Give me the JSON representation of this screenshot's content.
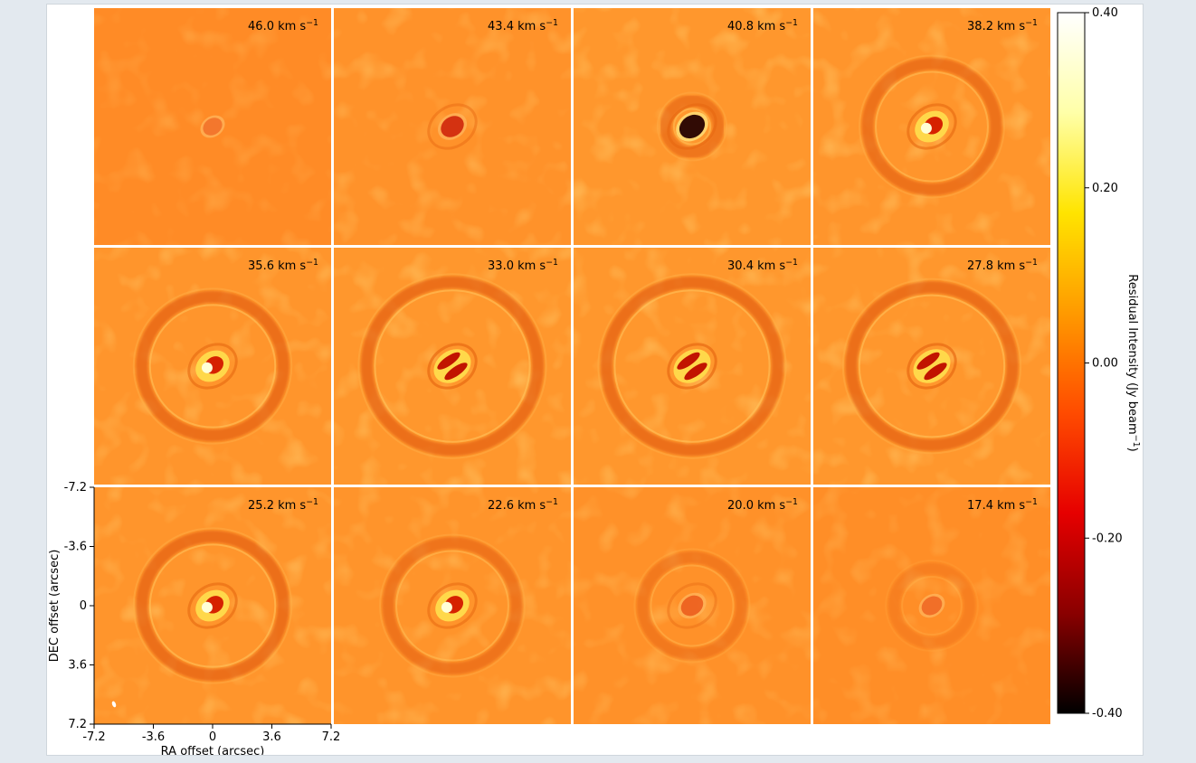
{
  "chart_data": {
    "type": "heatmap",
    "panels": [
      {
        "velocity": "46.0",
        "ring_radius": null,
        "ring_strength": 0,
        "core_strength": 0.25,
        "core_pattern": "blob"
      },
      {
        "velocity": "43.4",
        "ring_radius": null,
        "ring_strength": 0,
        "core_strength": 0.7,
        "core_pattern": "blob"
      },
      {
        "velocity": "40.8",
        "ring_radius": 1.6,
        "ring_strength": 0.5,
        "core_strength": 1.0,
        "core_pattern": "blob"
      },
      {
        "velocity": "38.2",
        "ring_radius": 3.9,
        "ring_strength": 0.55,
        "core_strength": 0.9,
        "core_pattern": "bright"
      },
      {
        "velocity": "35.6",
        "ring_radius": 4.3,
        "ring_strength": 0.6,
        "core_strength": 0.9,
        "core_pattern": "bright"
      },
      {
        "velocity": "33.0",
        "ring_radius": 5.2,
        "ring_strength": 0.6,
        "core_strength": 1.0,
        "core_pattern": "split"
      },
      {
        "velocity": "30.4",
        "ring_radius": 5.2,
        "ring_strength": 0.6,
        "core_strength": 1.0,
        "core_pattern": "split"
      },
      {
        "velocity": "27.8",
        "ring_radius": 4.9,
        "ring_strength": 0.6,
        "core_strength": 1.0,
        "core_pattern": "split"
      },
      {
        "velocity": "25.2",
        "ring_radius": 4.3,
        "ring_strength": 0.6,
        "core_strength": 0.9,
        "core_pattern": "bright"
      },
      {
        "velocity": "22.6",
        "ring_radius": 3.9,
        "ring_strength": 0.5,
        "core_strength": 0.8,
        "core_pattern": "bright"
      },
      {
        "velocity": "20.0",
        "ring_radius": 3.0,
        "ring_strength": 0.4,
        "core_strength": 0.6,
        "core_pattern": "blob"
      },
      {
        "velocity": "17.4",
        "ring_radius": 2.3,
        "ring_strength": 0.25,
        "core_strength": 0.4,
        "core_pattern": "blob"
      }
    ],
    "velocity_unit_text": "km s",
    "velocity_unit_exponent": "−1",
    "xlabel": "RA offset (arcsec)",
    "ylabel": "DEC offset (arcsec)",
    "xticks": [
      "-7.2",
      "-3.6",
      "0",
      "3.6",
      "7.2"
    ],
    "yticks": [
      "-7.2",
      "-3.6",
      "0",
      "3.6",
      "7.2"
    ],
    "extent_arcsec": [
      -7.2,
      7.2
    ],
    "colorbar": {
      "label": "Residual Intensity (Jy beam",
      "label_exponent": "−1",
      "label_close": ")",
      "ticks": [
        "-0.40",
        "-0.20",
        "0.00",
        "0.20",
        "0.40"
      ],
      "range": [
        -0.4,
        0.4
      ],
      "colormap": "hot",
      "colors": [
        "#000000",
        "#8a0000",
        "#e60000",
        "#ff4b00",
        "#ff9a00",
        "#ffe400",
        "#ffffa8",
        "#ffffff"
      ]
    },
    "background_color": "#ff8a1e"
  }
}
